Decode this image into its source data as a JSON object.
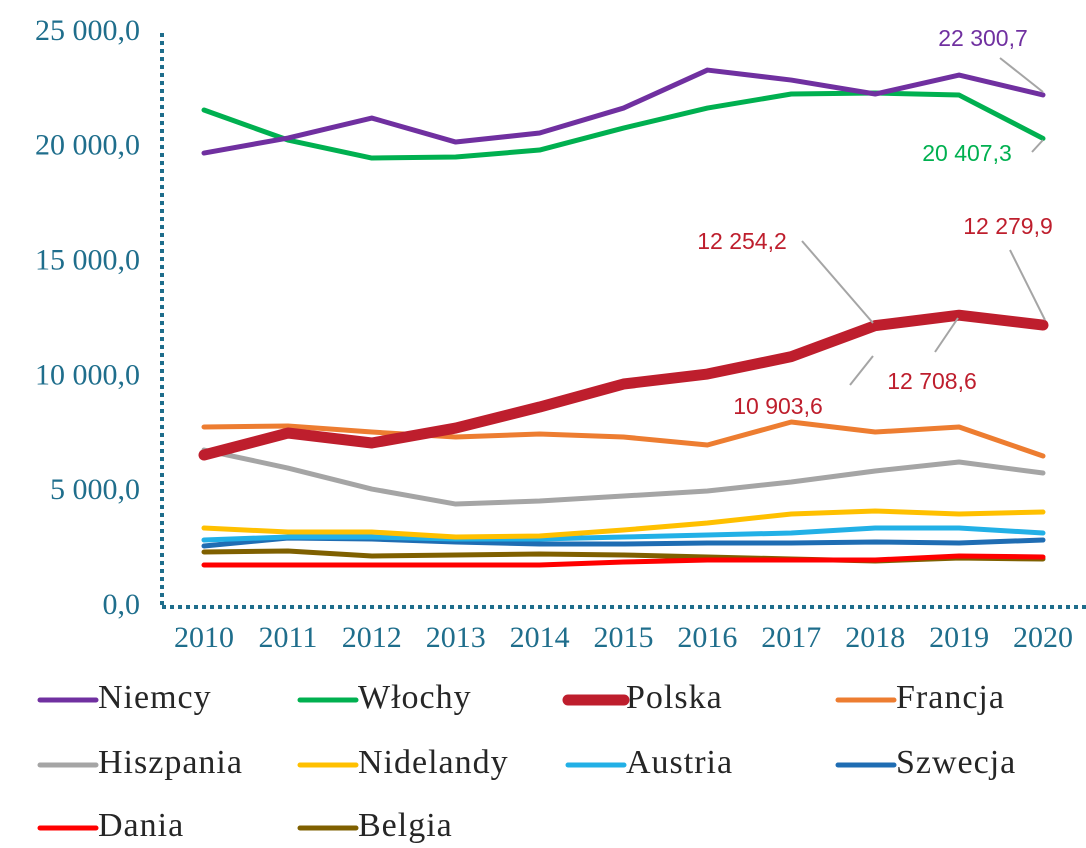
{
  "chart_data": {
    "type": "line",
    "categories": [
      "2010",
      "2011",
      "2012",
      "2013",
      "2014",
      "2015",
      "2016",
      "2017",
      "2018",
      "2019",
      "2020"
    ],
    "ylim": [
      0,
      25000
    ],
    "yticks": [
      {
        "value": 0,
        "label": "0,0"
      },
      {
        "value": 5000,
        "label": "5 000,0"
      },
      {
        "value": 10000,
        "label": "10 000,0"
      },
      {
        "value": 15000,
        "label": "15 000,0"
      },
      {
        "value": 20000,
        "label": "20 000,0"
      },
      {
        "value": 25000,
        "label": "25 000,0"
      }
    ],
    "grid": false,
    "legend": "bottom",
    "series": [
      {
        "name": "Niemcy",
        "color": "#7030a0",
        "values": [
          19772,
          20425,
          21296,
          20251,
          20643,
          21731,
          23386,
          22951,
          22342,
          23169,
          22300.7
        ],
        "value_labels": [
          null,
          null,
          null,
          null,
          null,
          null,
          null,
          null,
          null,
          null,
          "22 300,7"
        ]
      },
      {
        "name": "Włochy",
        "color": "#00b050",
        "values": [
          21645,
          20338,
          19554,
          19598,
          19903,
          20861,
          21731,
          22342,
          22385,
          22298,
          20407.3
        ],
        "value_labels": [
          null,
          null,
          null,
          null,
          null,
          null,
          null,
          null,
          null,
          null,
          "20 407,3"
        ]
      },
      {
        "name": "Polska",
        "color": "#be1e2d",
        "emphasis": true,
        "values": [
          6620,
          7578,
          7142,
          7795,
          8710,
          9712,
          10147,
          10903.6,
          12254.2,
          12708.6,
          12279.9
        ],
        "value_labels": [
          null,
          null,
          null,
          null,
          null,
          null,
          null,
          "10 903,6",
          "12 254,2",
          "12 708,6",
          "12 279,9"
        ]
      },
      {
        "name": "Francja",
        "color": "#ed7d31",
        "values": [
          7839,
          7883,
          7621,
          7404,
          7534,
          7404,
          7055,
          8057,
          7621,
          7839,
          6576
        ]
      },
      {
        "name": "Hiszpania",
        "color": "#a5a5a5",
        "values": [
          6837,
          6053,
          5138,
          4485,
          4616,
          4834,
          5052,
          5444,
          5923,
          6315,
          5836
        ]
      },
      {
        "name": "Nidelandy",
        "color": "#ffc000",
        "values": [
          3440,
          3266,
          3266,
          3049,
          3092,
          3353,
          3658,
          4050,
          4181,
          4050,
          4137
        ]
      },
      {
        "name": "Austria",
        "color": "#22b0e6",
        "values": [
          2918,
          3049,
          3049,
          2962,
          2962,
          3049,
          3136,
          3223,
          3440,
          3440,
          3223
        ]
      },
      {
        "name": "Szwecja",
        "color": "#1f6db3",
        "values": [
          2657,
          3005,
          2962,
          2831,
          2744,
          2744,
          2787,
          2787,
          2831,
          2787,
          2918
        ]
      },
      {
        "name": "Dania",
        "color": "#ff0000",
        "values": [
          1829,
          1829,
          1829,
          1829,
          1829,
          1960,
          2047,
          2047,
          2047,
          2221,
          2178
        ]
      },
      {
        "name": "Belgia",
        "color": "#7f6000",
        "values": [
          2395,
          2439,
          2221,
          2265,
          2308,
          2265,
          2178,
          2090,
          2003,
          2134,
          2090
        ]
      }
    ]
  }
}
